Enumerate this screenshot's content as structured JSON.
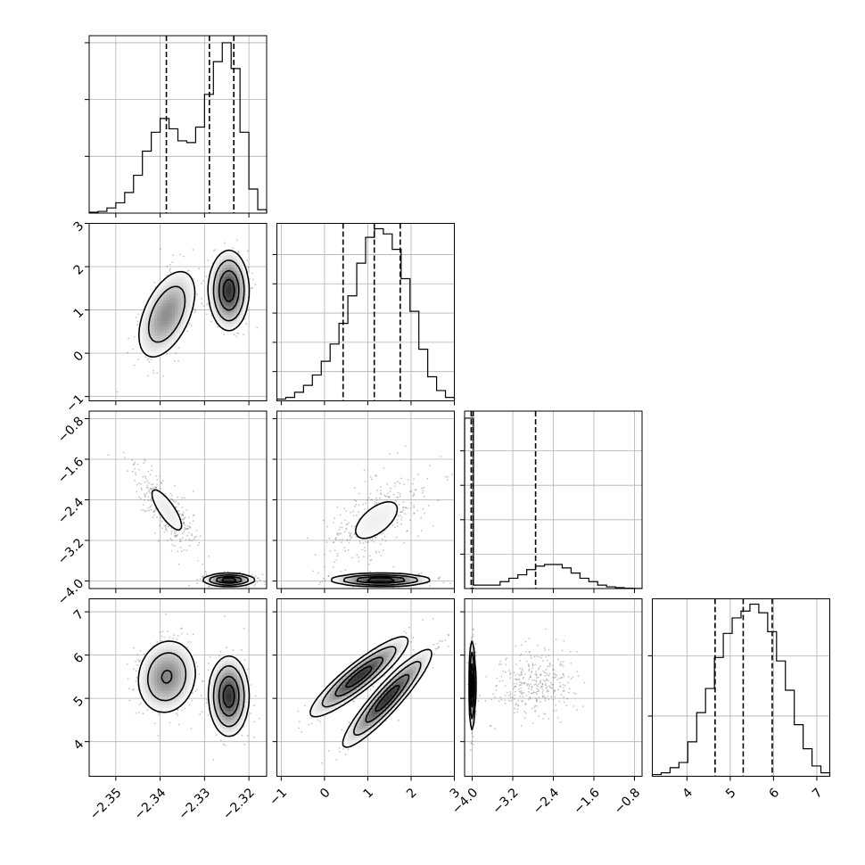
{
  "chart_data": {
    "type": "corner",
    "parameters": [
      {
        "range": [
          -2.356,
          -2.316
        ],
        "ticks": [
          -2.35,
          -2.34,
          -2.33,
          -2.32
        ],
        "tick_labels": [
          "−2.35",
          "−2.34",
          "−2.33",
          "−2.32"
        ],
        "quantiles": [
          -2.3386,
          -2.3289,
          -2.3234
        ]
      },
      {
        "range": [
          -1.1,
          3.0
        ],
        "ticks": [
          -1,
          0,
          1,
          2,
          3
        ],
        "tick_labels": [
          "−1",
          "0",
          "1",
          "2",
          "3"
        ],
        "quantiles": [
          0.43,
          1.15,
          1.75
        ]
      },
      {
        "range": [
          -4.15,
          -0.65
        ],
        "ticks": [
          -4.0,
          -3.2,
          -2.4,
          -1.6,
          -0.8
        ],
        "tick_labels": [
          "−4.0",
          "−3.2",
          "−2.4",
          "−1.6",
          "−0.8"
        ],
        "quantiles": [
          -4.02,
          -3.98,
          -2.75
        ]
      },
      {
        "range": [
          3.2,
          7.3
        ],
        "ticks": [
          4,
          5,
          6,
          7
        ],
        "tick_labels": [
          "4",
          "5",
          "6",
          "7"
        ],
        "quantiles": [
          4.65,
          5.3,
          5.97
        ]
      }
    ],
    "histograms": [
      {
        "counts": [
          0.005,
          0.01,
          0.03,
          0.06,
          0.12,
          0.22,
          0.36,
          0.47,
          0.55,
          0.49,
          0.42,
          0.41,
          0.5,
          0.69,
          0.88,
          0.99,
          0.84,
          0.47,
          0.14,
          0.02
        ]
      },
      {
        "counts": [
          0.01,
          0.02,
          0.05,
          0.09,
          0.15,
          0.23,
          0.33,
          0.45,
          0.61,
          0.8,
          0.95,
          1.0,
          0.97,
          0.88,
          0.71,
          0.52,
          0.3,
          0.14,
          0.06,
          0.02
        ]
      },
      {
        "counts": [
          0.99,
          0.02,
          0.02,
          0.02,
          0.04,
          0.06,
          0.08,
          0.11,
          0.13,
          0.14,
          0.14,
          0.12,
          0.09,
          0.06,
          0.04,
          0.02,
          0.01,
          0.005,
          0.002,
          0.001
        ]
      },
      {
        "counts": [
          0.01,
          0.02,
          0.05,
          0.08,
          0.2,
          0.37,
          0.51,
          0.69,
          0.83,
          0.92,
          0.96,
          1.0,
          0.95,
          0.84,
          0.67,
          0.5,
          0.3,
          0.16,
          0.06,
          0.02
        ]
      }
    ],
    "hist_yticks": [
      {
        "values": [
          0.33,
          0.66,
          0.99
        ]
      },
      {
        "values": [
          0.17,
          0.34,
          0.51,
          0.68,
          0.85
        ]
      },
      {
        "values": [
          0.2,
          0.4,
          0.6,
          0.8
        ]
      },
      {
        "values": [
          0.35,
          0.7
        ]
      }
    ],
    "joint": [
      {
        "row": 1,
        "col": 0,
        "modes": [
          {
            "mx": -2.3385,
            "my": 0.9,
            "sx": 0.0035,
            "sy": 0.55,
            "rho": 0.5,
            "w": 0.5
          },
          {
            "mx": -2.3245,
            "my": 1.45,
            "sx": 0.0022,
            "sy": 0.45,
            "rho": 0.0,
            "w": 0.5
          }
        ]
      },
      {
        "row": 2,
        "col": 0,
        "modes": [
          {
            "mx": -2.3385,
            "my": -2.6,
            "sx": 0.0038,
            "sy": 0.45,
            "rho": -0.8,
            "w": 0.5
          },
          {
            "mx": -2.3245,
            "my": -3.98,
            "sx": 0.0028,
            "sy": 0.06,
            "rho": 0.0,
            "w": 0.5
          }
        ]
      },
      {
        "row": 2,
        "col": 1,
        "modes": [
          {
            "mx": 1.2,
            "my": -2.8,
            "sx": 0.6,
            "sy": 0.45,
            "rho": 0.6,
            "w": 0.5
          },
          {
            "mx": 1.3,
            "my": -3.98,
            "sx": 0.55,
            "sy": 0.06,
            "rho": 0.0,
            "w": 0.5
          }
        ]
      },
      {
        "row": 3,
        "col": 0,
        "modes": [
          {
            "mx": -2.3385,
            "my": 5.5,
            "sx": 0.0035,
            "sy": 0.45,
            "rho": 0.1,
            "w": 0.5
          },
          {
            "mx": -2.3245,
            "my": 5.05,
            "sx": 0.0022,
            "sy": 0.45,
            "rho": 0.0,
            "w": 0.5
          }
        ]
      },
      {
        "row": 3,
        "col": 1,
        "modes": [
          {
            "mx": 0.8,
            "my": 5.5,
            "sx": 0.55,
            "sy": 0.45,
            "rho": 0.9,
            "w": 0.5
          },
          {
            "mx": 1.45,
            "my": 5.0,
            "sx": 0.5,
            "sy": 0.55,
            "rho": 0.92,
            "w": 0.5
          }
        ]
      },
      {
        "row": 3,
        "col": 2,
        "modes": [
          {
            "mx": -4.0,
            "my": 5.3,
            "sx": 0.03,
            "sy": 0.5,
            "rho": 0.0,
            "w": 0.5
          },
          {
            "mx": -2.75,
            "my": 5.4,
            "sx": 0.4,
            "sy": 0.4,
            "rho": 0.1,
            "w": 0.5
          }
        ]
      }
    ],
    "contour_levels": [
      0.39,
      0.86,
      0.99
    ],
    "grid": true
  }
}
